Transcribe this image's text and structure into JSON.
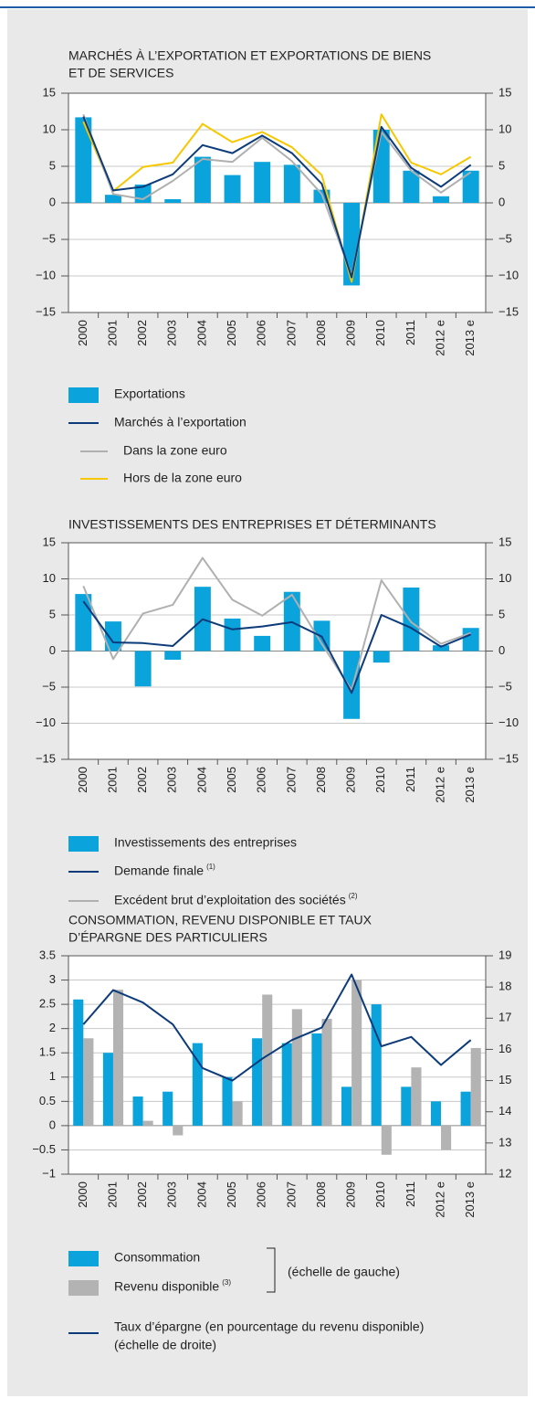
{
  "chart_data": [
    {
      "type": "bar_line",
      "title": [
        "MARCHÉS À L’EXPORTATION ET EXPORTATIONS DE BIENS",
        "ET DE SERVICES"
      ],
      "categories": [
        "2000",
        "2001",
        "2002",
        "2003",
        "2004",
        "2005",
        "2006",
        "2007",
        "2008",
        "2009",
        "2010",
        "2011",
        "2012 e",
        "2013 e"
      ],
      "series": [
        {
          "name": "Exportations",
          "type": "bar",
          "color": "#0aa3dc",
          "values": [
            11.7,
            1.1,
            2.5,
            0.5,
            6.3,
            3.8,
            5.6,
            5.2,
            1.8,
            -11.3,
            10.0,
            4.4,
            0.9,
            4.4
          ]
        },
        {
          "name": "Marchés à l’exportation",
          "type": "line",
          "color": "#0d3b7a",
          "values": [
            11.8,
            1.7,
            2.2,
            3.9,
            7.9,
            6.8,
            9.2,
            6.8,
            2.6,
            -10.2,
            10.4,
            4.8,
            2.2,
            5.2
          ]
        },
        {
          "name": "Dans la zone euro",
          "type": "line",
          "color": "#b0b0b0",
          "values": [
            12.1,
            1.2,
            0.5,
            3.0,
            6.0,
            5.6,
            8.9,
            5.7,
            1.2,
            -9.9,
            9.7,
            4.4,
            1.4,
            4.2
          ]
        },
        {
          "name": "Hors de la zone euro",
          "type": "line",
          "color": "#f5c800",
          "values": [
            11.1,
            1.6,
            4.9,
            5.5,
            10.8,
            8.3,
            9.7,
            7.6,
            3.8,
            -10.8,
            12.1,
            5.5,
            3.9,
            6.3
          ]
        }
      ],
      "ylim": [
        -15,
        15
      ],
      "yticks": [
        15,
        10,
        5,
        0,
        {
          "value": -5,
          "label": "−5"
        },
        {
          "value": -10,
          "label": "−10"
        },
        {
          "value": -15,
          "label": "−15"
        }
      ],
      "y2lim": [
        -15,
        15
      ],
      "y2ticks": [
        15,
        10,
        5,
        0,
        {
          "value": -5,
          "label": "−5"
        },
        {
          "value": -10,
          "label": "−10"
        },
        {
          "value": -15,
          "label": "−15"
        }
      ],
      "grid": true
    },
    {
      "type": "bar_line",
      "title": [
        "INVESTISSEMENTS DES ENTREPRISES ET DÉTERMINANTS"
      ],
      "categories": [
        "2000",
        "2001",
        "2002",
        "2003",
        "2004",
        "2005",
        "2006",
        "2007",
        "2008",
        "2009",
        "2010",
        "2011",
        "2012 e",
        "2013 e"
      ],
      "series": [
        {
          "name": "Investissements des entreprises",
          "type": "bar",
          "color": "#0aa3dc",
          "values": [
            7.9,
            4.1,
            -4.9,
            -1.2,
            8.9,
            4.5,
            2.1,
            8.2,
            4.2,
            -9.4,
            -1.6,
            8.8,
            0.8,
            3.2
          ]
        },
        {
          "name": "Demande finale",
          "note": "(1)",
          "type": "line",
          "color": "#0d3b7a",
          "values": [
            6.9,
            1.2,
            1.1,
            0.7,
            4.4,
            3.0,
            3.4,
            4.0,
            2.0,
            -5.8,
            5.0,
            3.2,
            0.6,
            2.3
          ]
        },
        {
          "name": "Excédent brut d’exploitation des sociétés",
          "note": "(2)",
          "type": "line",
          "color": "#b0b0b0",
          "values": [
            9.0,
            -1.1,
            5.2,
            6.4,
            12.9,
            7.1,
            4.9,
            7.8,
            1.0,
            -5.4,
            9.8,
            4.0,
            1.0,
            2.5
          ]
        }
      ],
      "ylim": [
        -15,
        15
      ],
      "yticks": [
        15,
        10,
        5,
        0,
        {
          "value": -5,
          "label": "−5"
        },
        {
          "value": -10,
          "label": "−10"
        },
        {
          "value": -15,
          "label": "−15"
        }
      ],
      "y2lim": [
        -15,
        15
      ],
      "y2ticks": [
        15,
        10,
        5,
        0,
        {
          "value": -5,
          "label": "−5"
        },
        {
          "value": -10,
          "label": "−10"
        },
        {
          "value": -15,
          "label": "−15"
        }
      ],
      "grid": true
    },
    {
      "type": "bar_line",
      "title": [
        "CONSOMMATION, REVENU DISPONIBLE ET TAUX",
        "D’ÉPARGNE DES PARTICULIERS"
      ],
      "categories": [
        "2000",
        "2001",
        "2002",
        "2003",
        "2004",
        "2005",
        "2006",
        "2007",
        "2008",
        "2009",
        "2010",
        "2011",
        "2012 e",
        "2013 e"
      ],
      "series": [
        {
          "name": "Consommation",
          "type": "bar",
          "color": "#0aa3dc",
          "values": [
            2.6,
            1.5,
            0.6,
            0.7,
            1.7,
            1.0,
            1.8,
            1.7,
            1.9,
            0.8,
            2.5,
            0.8,
            0.5,
            0.7
          ]
        },
        {
          "name": "Revenu disponible",
          "note": "(3)",
          "type": "bar",
          "color": "#b3b3b3",
          "values": [
            1.8,
            2.8,
            0.1,
            -0.2,
            0,
            0.5,
            2.7,
            2.4,
            2.2,
            3.0,
            -0.6,
            1.2,
            -0.5,
            1.6
          ]
        },
        {
          "name": "Taux d’épargne (en pourcentage du revenu disponible)",
          "type": "line",
          "axis": "y2",
          "color": "#0d3b7a",
          "values": [
            16.8,
            17.9,
            17.5,
            16.8,
            15.4,
            15.0,
            15.7,
            16.3,
            16.7,
            18.4,
            16.1,
            16.4,
            15.5,
            16.3
          ]
        }
      ],
      "left_scale_label": "(échelle de gauche)",
      "right_scale_label": "(échelle de droite)",
      "ylim": [
        -1,
        3.5
      ],
      "yticks": [
        3.5,
        3,
        2.5,
        2,
        1.5,
        1,
        0.5,
        0,
        {
          "value": -0.5,
          "label": "−0.5"
        },
        {
          "value": -1,
          "label": "−1"
        }
      ],
      "y2lim": [
        12,
        19
      ],
      "y2ticks": [
        19,
        18,
        17,
        16,
        15,
        14,
        13,
        12
      ],
      "grid": true
    }
  ]
}
